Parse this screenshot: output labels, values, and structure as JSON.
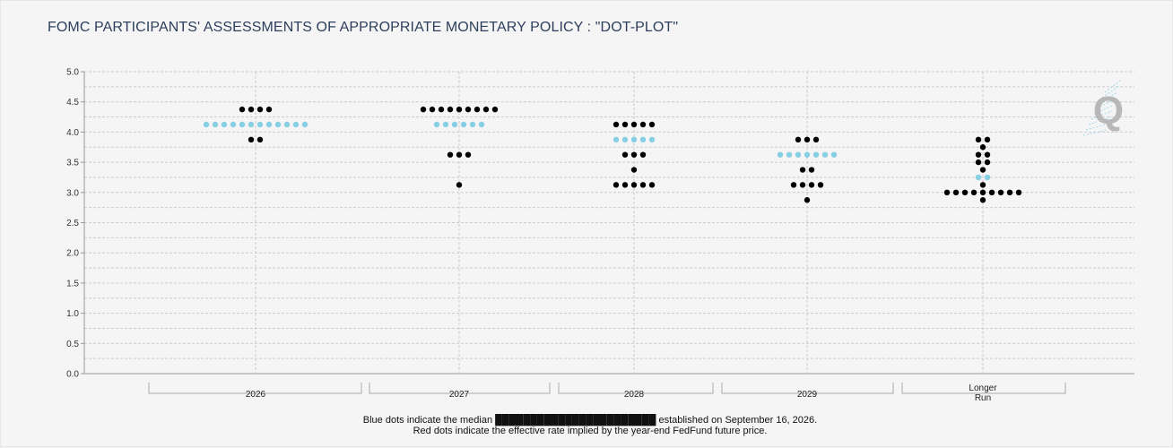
{
  "title": "FOMC PARTICIPANTS' ASSESSMENTS OF APPROPRIATE MONETARY POLICY : \"DOT-PLOT\"",
  "notes": {
    "line1": "Blue dots indicate the median ███████████████████████ established on September 16, 2026.",
    "line2": "Red dots indicate the effective rate implied by the year-end FedFund future price."
  },
  "logo": {
    "letter": "Q",
    "color": "#b8b8b8",
    "accent": "#8fd3e8"
  },
  "colors": {
    "participant": "#000000",
    "median": "#87cfe3",
    "grid": "#cccccc",
    "axis": "#999999"
  },
  "chart_data": {
    "type": "scatter",
    "ylim": [
      0,
      5
    ],
    "yticks": [
      "0.0",
      "0.5",
      "1.0",
      "1.5",
      "2.0",
      "2.5",
      "3.0",
      "3.5",
      "4.0",
      "4.5",
      "5.0"
    ],
    "grid": true,
    "categories": [
      {
        "label": "2026",
        "participants": [
          {
            "rate": 4.375,
            "count": 4
          },
          {
            "rate": 3.875,
            "count": 2
          }
        ],
        "median": {
          "rate": 4.125,
          "count": 12
        }
      },
      {
        "label": "2027",
        "participants": [
          {
            "rate": 4.375,
            "count": 9
          },
          {
            "rate": 3.625,
            "count": 3
          },
          {
            "rate": 3.125,
            "count": 1
          }
        ],
        "median": {
          "rate": 4.125,
          "count": 6
        }
      },
      {
        "label": "2028",
        "participants": [
          {
            "rate": 4.125,
            "count": 5
          },
          {
            "rate": 3.625,
            "count": 3
          },
          {
            "rate": 3.375,
            "count": 1
          },
          {
            "rate": 3.125,
            "count": 5
          }
        ],
        "median": {
          "rate": 3.875,
          "count": 5
        }
      },
      {
        "label": "2029",
        "participants": [
          {
            "rate": 3.875,
            "count": 3
          },
          {
            "rate": 3.375,
            "count": 2
          },
          {
            "rate": 3.125,
            "count": 4
          },
          {
            "rate": 2.875,
            "count": 1
          }
        ],
        "median": {
          "rate": 3.625,
          "count": 7
        }
      },
      {
        "label": "Longer Run",
        "label_lines": [
          "Longer",
          "Run"
        ],
        "participants": [
          {
            "rate": 3.875,
            "count": 2
          },
          {
            "rate": 3.75,
            "count": 1
          },
          {
            "rate": 3.625,
            "count": 2
          },
          {
            "rate": 3.5,
            "count": 2
          },
          {
            "rate": 3.375,
            "count": 1
          },
          {
            "rate": 3.125,
            "count": 1
          },
          {
            "rate": 3.0,
            "count": 9
          },
          {
            "rate": 2.875,
            "count": 1
          }
        ],
        "median": {
          "rate": 3.25,
          "count": 2
        }
      }
    ]
  }
}
